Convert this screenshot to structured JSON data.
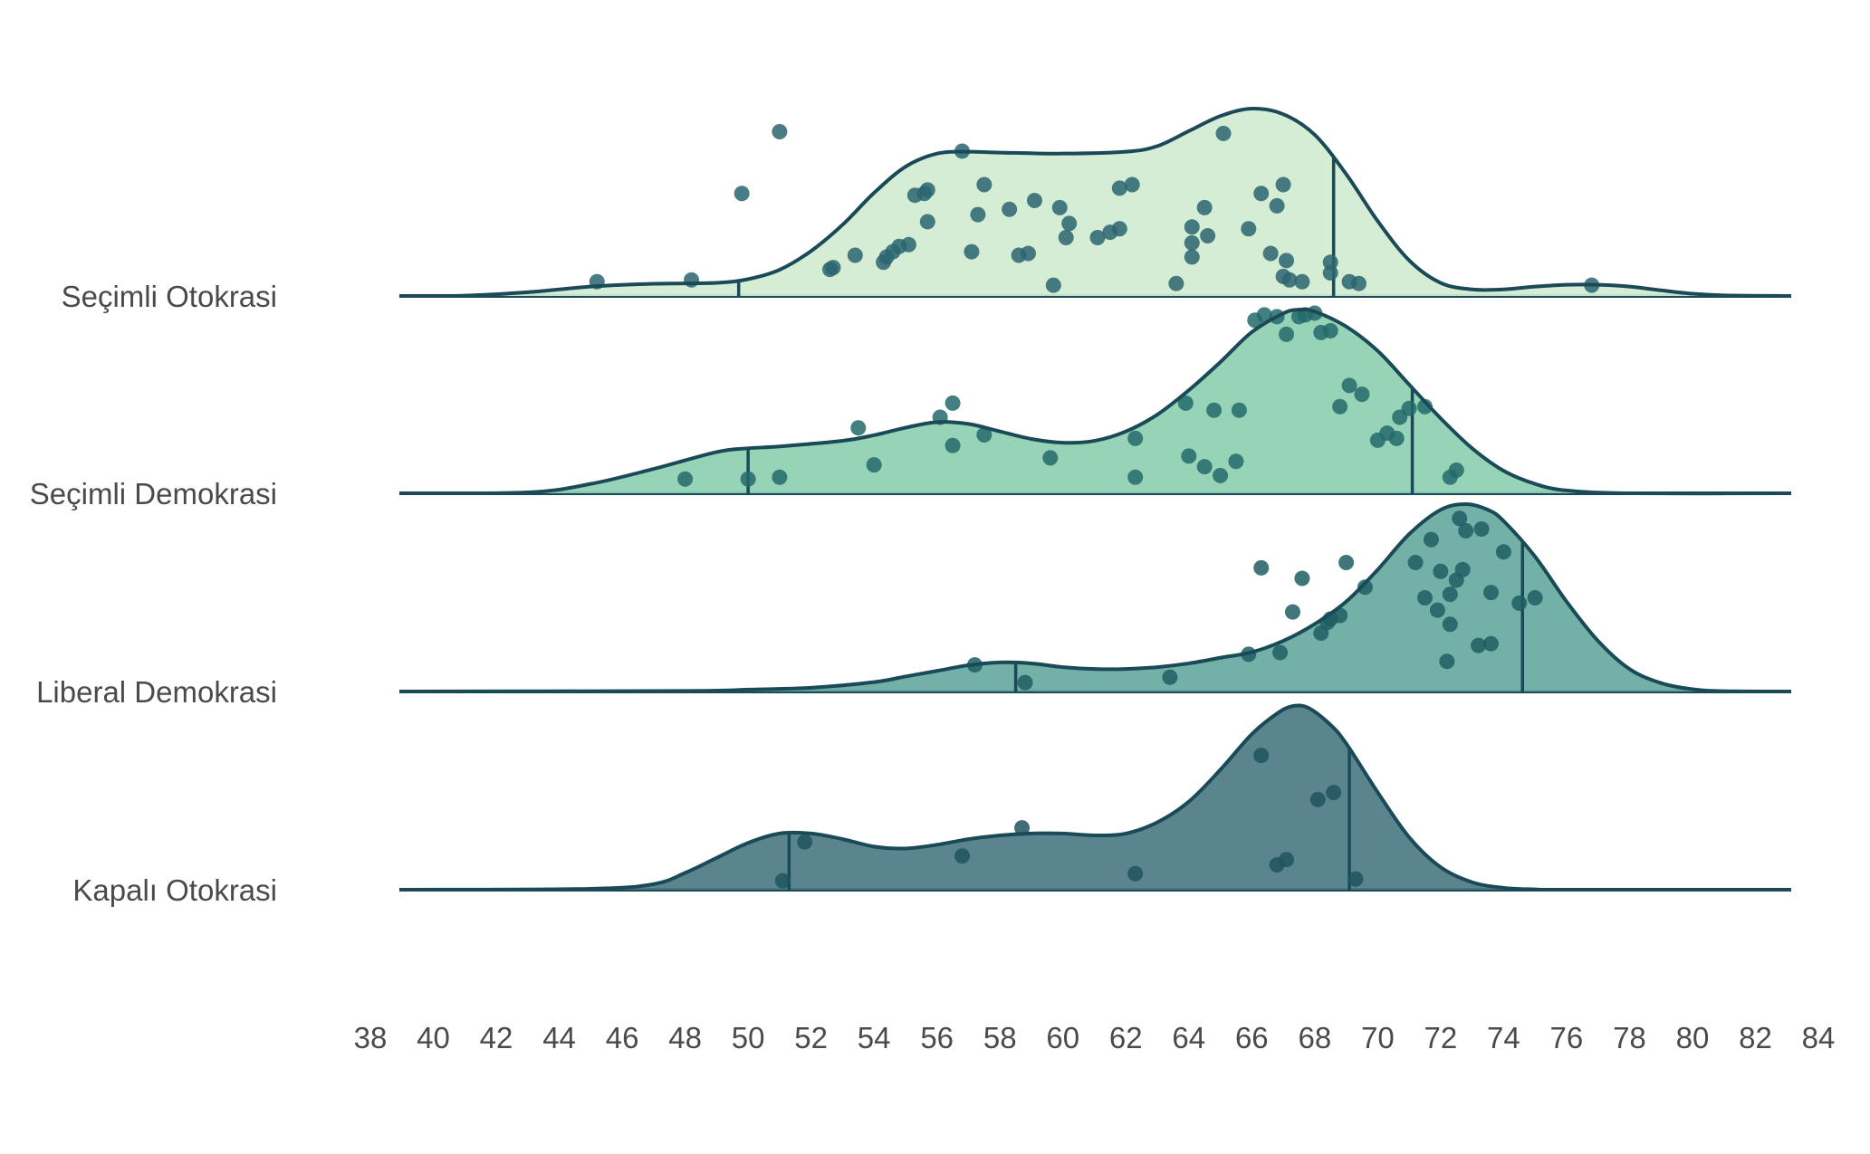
{
  "chart_data": {
    "type": "ridgeline",
    "title": "",
    "xlabel": "",
    "ylabel": "",
    "xlim": [
      38,
      84
    ],
    "x_ticks": [
      38,
      40,
      42,
      44,
      46,
      48,
      50,
      52,
      54,
      56,
      58,
      60,
      62,
      64,
      66,
      68,
      70,
      72,
      74,
      76,
      78,
      80,
      82,
      84
    ],
    "grid": false,
    "legend": "none",
    "line_color": "#1a4a57",
    "series": [
      {
        "name": "Seçimli Otokrasi",
        "fill": "#d3ecd1",
        "points_color": "#2a6570",
        "density": [
          [
            39,
            0.0
          ],
          [
            41,
            0.002
          ],
          [
            43,
            0.02
          ],
          [
            45,
            0.05
          ],
          [
            47,
            0.065
          ],
          [
            49,
            0.07
          ],
          [
            50,
            0.09
          ],
          [
            51,
            0.14
          ],
          [
            52,
            0.24
          ],
          [
            53,
            0.38
          ],
          [
            54,
            0.55
          ],
          [
            55,
            0.69
          ],
          [
            56,
            0.76
          ],
          [
            57,
            0.77
          ],
          [
            58,
            0.765
          ],
          [
            60,
            0.76
          ],
          [
            62,
            0.77
          ],
          [
            63,
            0.8
          ],
          [
            64,
            0.88
          ],
          [
            65,
            0.96
          ],
          [
            66,
            1.0
          ],
          [
            67,
            0.97
          ],
          [
            68,
            0.86
          ],
          [
            69,
            0.65
          ],
          [
            70,
            0.4
          ],
          [
            71,
            0.19
          ],
          [
            72,
            0.07
          ],
          [
            73,
            0.035
          ],
          [
            74,
            0.035
          ],
          [
            75,
            0.05
          ],
          [
            76,
            0.06
          ],
          [
            77,
            0.06
          ],
          [
            78,
            0.05
          ],
          [
            79,
            0.03
          ],
          [
            80,
            0.012
          ],
          [
            81,
            0.003
          ],
          [
            83,
            0.0
          ]
        ],
        "quantile_lines": [
          49.7,
          68.6
        ],
        "points": [
          [
            45.2,
            0.05
          ],
          [
            48.2,
            0.06
          ],
          [
            49.8,
            0.55
          ],
          [
            51.0,
            0.9
          ],
          [
            52.6,
            0.12
          ],
          [
            52.7,
            0.13
          ],
          [
            53.4,
            0.2
          ],
          [
            54.3,
            0.16
          ],
          [
            54.4,
            0.19
          ],
          [
            54.6,
            0.22
          ],
          [
            54.8,
            0.25
          ],
          [
            55.1,
            0.26
          ],
          [
            55.3,
            0.54
          ],
          [
            55.6,
            0.55
          ],
          [
            55.7,
            0.57
          ],
          [
            55.7,
            0.39
          ],
          [
            56.8,
            0.79
          ],
          [
            57.1,
            0.22
          ],
          [
            57.3,
            0.43
          ],
          [
            57.5,
            0.6
          ],
          [
            58.3,
            0.46
          ],
          [
            58.6,
            0.2
          ],
          [
            58.9,
            0.21
          ],
          [
            59.1,
            0.51
          ],
          [
            59.7,
            0.03
          ],
          [
            59.9,
            0.47
          ],
          [
            60.1,
            0.3
          ],
          [
            60.2,
            0.38
          ],
          [
            61.1,
            0.3
          ],
          [
            61.5,
            0.33
          ],
          [
            61.8,
            0.35
          ],
          [
            61.8,
            0.58
          ],
          [
            62.2,
            0.6
          ],
          [
            63.6,
            0.04
          ],
          [
            64.1,
            0.36
          ],
          [
            64.1,
            0.27
          ],
          [
            64.1,
            0.19
          ],
          [
            64.5,
            0.47
          ],
          [
            64.6,
            0.31
          ],
          [
            65.1,
            0.89
          ],
          [
            65.9,
            0.35
          ],
          [
            66.3,
            0.55
          ],
          [
            66.6,
            0.21
          ],
          [
            66.8,
            0.48
          ],
          [
            67.0,
            0.08
          ],
          [
            67.0,
            0.6
          ],
          [
            67.1,
            0.17
          ],
          [
            67.2,
            0.06
          ],
          [
            67.6,
            0.05
          ],
          [
            68.5,
            0.16
          ],
          [
            68.5,
            0.1
          ],
          [
            69.4,
            0.04
          ],
          [
            69.1,
            0.05
          ],
          [
            76.8,
            0.03
          ]
        ]
      },
      {
        "name": "Seçimli Demokrasi",
        "fill": "#8ecfb0",
        "points_color": "#236a6b",
        "density": [
          [
            39,
            0.0
          ],
          [
            43,
            0.005
          ],
          [
            45,
            0.05
          ],
          [
            47,
            0.13
          ],
          [
            49,
            0.22
          ],
          [
            50,
            0.24
          ],
          [
            51,
            0.25
          ],
          [
            53,
            0.28
          ],
          [
            54,
            0.31
          ],
          [
            55,
            0.35
          ],
          [
            56,
            0.38
          ],
          [
            57,
            0.37
          ],
          [
            58,
            0.33
          ],
          [
            59,
            0.29
          ],
          [
            60,
            0.27
          ],
          [
            61,
            0.28
          ],
          [
            62,
            0.33
          ],
          [
            63,
            0.42
          ],
          [
            64,
            0.55
          ],
          [
            65,
            0.7
          ],
          [
            66,
            0.86
          ],
          [
            67,
            0.96
          ],
          [
            67.5,
            0.98
          ],
          [
            68,
            0.97
          ],
          [
            69,
            0.89
          ],
          [
            70,
            0.76
          ],
          [
            71,
            0.58
          ],
          [
            72,
            0.4
          ],
          [
            73,
            0.24
          ],
          [
            74,
            0.12
          ],
          [
            75,
            0.05
          ],
          [
            76,
            0.015
          ],
          [
            78,
            0.0
          ],
          [
            83,
            0.0
          ]
        ],
        "quantile_lines": [
          50.0,
          71.1
        ],
        "points": [
          [
            48.0,
            0.05
          ],
          [
            50.0,
            0.05
          ],
          [
            51.0,
            0.06
          ],
          [
            53.5,
            0.34
          ],
          [
            54.0,
            0.13
          ],
          [
            56.1,
            0.4
          ],
          [
            56.5,
            0.24
          ],
          [
            56.5,
            0.48
          ],
          [
            57.5,
            0.3
          ],
          [
            59.6,
            0.17
          ],
          [
            62.3,
            0.28
          ],
          [
            62.3,
            0.06
          ],
          [
            63.9,
            0.48
          ],
          [
            64.0,
            0.18
          ],
          [
            64.5,
            0.12
          ],
          [
            64.8,
            0.44
          ],
          [
            65.0,
            0.07
          ],
          [
            65.5,
            0.15
          ],
          [
            65.6,
            0.44
          ],
          [
            66.1,
            0.95
          ],
          [
            66.4,
            0.98
          ],
          [
            66.8,
            0.97
          ],
          [
            67.1,
            0.87
          ],
          [
            67.5,
            0.97
          ],
          [
            67.7,
            0.98
          ],
          [
            68.0,
            0.99
          ],
          [
            68.2,
            0.88
          ],
          [
            68.5,
            0.89
          ],
          [
            68.8,
            0.46
          ],
          [
            69.1,
            0.58
          ],
          [
            69.5,
            0.53
          ],
          [
            70.0,
            0.27
          ],
          [
            70.3,
            0.31
          ],
          [
            70.6,
            0.28
          ],
          [
            70.7,
            0.4
          ],
          [
            71.0,
            0.45
          ],
          [
            71.5,
            0.46
          ],
          [
            72.3,
            0.06
          ],
          [
            72.5,
            0.1
          ]
        ]
      },
      {
        "name": "Liberal Demokrasi",
        "fill": "#66a9a1",
        "points_color": "#1e5e63",
        "density": [
          [
            39,
            0.0
          ],
          [
            48,
            0.003
          ],
          [
            50,
            0.01
          ],
          [
            52,
            0.02
          ],
          [
            54,
            0.05
          ],
          [
            55,
            0.08
          ],
          [
            56,
            0.11
          ],
          [
            57,
            0.14
          ],
          [
            58,
            0.155
          ],
          [
            59,
            0.15
          ],
          [
            60,
            0.13
          ],
          [
            61,
            0.12
          ],
          [
            62,
            0.12
          ],
          [
            63,
            0.13
          ],
          [
            64,
            0.15
          ],
          [
            65,
            0.18
          ],
          [
            66,
            0.21
          ],
          [
            67,
            0.27
          ],
          [
            68,
            0.36
          ],
          [
            69,
            0.48
          ],
          [
            70,
            0.65
          ],
          [
            71,
            0.84
          ],
          [
            72,
            0.97
          ],
          [
            72.8,
            1.0
          ],
          [
            73.5,
            0.97
          ],
          [
            74,
            0.91
          ],
          [
            75,
            0.72
          ],
          [
            76,
            0.48
          ],
          [
            77,
            0.27
          ],
          [
            78,
            0.12
          ],
          [
            79,
            0.045
          ],
          [
            80,
            0.012
          ],
          [
            81,
            0.002
          ],
          [
            83,
            0.0
          ]
        ],
        "quantile_lines": [
          58.5,
          74.6
        ],
        "points": [
          [
            57.2,
            0.12
          ],
          [
            58.8,
            0.02
          ],
          [
            63.4,
            0.05
          ],
          [
            65.9,
            0.18
          ],
          [
            66.3,
            0.67
          ],
          [
            66.9,
            0.19
          ],
          [
            67.3,
            0.42
          ],
          [
            67.6,
            0.61
          ],
          [
            68.2,
            0.3
          ],
          [
            68.4,
            0.36
          ],
          [
            68.5,
            0.38
          ],
          [
            68.8,
            0.4
          ],
          [
            69.0,
            0.7
          ],
          [
            69.6,
            0.56
          ],
          [
            71.2,
            0.7
          ],
          [
            71.5,
            0.5
          ],
          [
            71.7,
            0.83
          ],
          [
            71.9,
            0.43
          ],
          [
            72.0,
            0.65
          ],
          [
            72.2,
            0.14
          ],
          [
            72.3,
            0.35
          ],
          [
            72.3,
            0.52
          ],
          [
            72.5,
            0.6
          ],
          [
            72.6,
            0.95
          ],
          [
            72.7,
            0.66
          ],
          [
            72.8,
            0.88
          ],
          [
            73.3,
            0.89
          ],
          [
            73.2,
            0.23
          ],
          [
            73.6,
            0.24
          ],
          [
            73.6,
            0.53
          ],
          [
            74.0,
            0.76
          ],
          [
            74.5,
            0.47
          ],
          [
            75.0,
            0.5
          ]
        ]
      },
      {
        "name": "Kapalı Otokrasi",
        "fill": "#4c7b84",
        "points_color": "#21545f",
        "density": [
          [
            39,
            0.0
          ],
          [
            45,
            0.005
          ],
          [
            47,
            0.03
          ],
          [
            48,
            0.09
          ],
          [
            49,
            0.17
          ],
          [
            50,
            0.25
          ],
          [
            51,
            0.3
          ],
          [
            52,
            0.3
          ],
          [
            53,
            0.27
          ],
          [
            54,
            0.23
          ],
          [
            55,
            0.22
          ],
          [
            56,
            0.24
          ],
          [
            57,
            0.27
          ],
          [
            58,
            0.29
          ],
          [
            59,
            0.3
          ],
          [
            60,
            0.3
          ],
          [
            61,
            0.29
          ],
          [
            62,
            0.3
          ],
          [
            63,
            0.36
          ],
          [
            64,
            0.47
          ],
          [
            65,
            0.64
          ],
          [
            66,
            0.83
          ],
          [
            66.8,
            0.94
          ],
          [
            67.3,
            0.98
          ],
          [
            67.8,
            0.97
          ],
          [
            68.5,
            0.88
          ],
          [
            69,
            0.78
          ],
          [
            70,
            0.52
          ],
          [
            71,
            0.28
          ],
          [
            72,
            0.12
          ],
          [
            73,
            0.04
          ],
          [
            74,
            0.01
          ],
          [
            75,
            0.002
          ],
          [
            76,
            0.0
          ],
          [
            83,
            0.0
          ]
        ],
        "quantile_lines": [
          51.3,
          69.1
        ],
        "points": [
          [
            51.1,
            0.02
          ],
          [
            51.8,
            0.24
          ],
          [
            56.8,
            0.16
          ],
          [
            58.7,
            0.32
          ],
          [
            62.3,
            0.06
          ],
          [
            66.3,
            0.73
          ],
          [
            66.8,
            0.11
          ],
          [
            67.1,
            0.14
          ],
          [
            68.1,
            0.48
          ],
          [
            68.6,
            0.52
          ],
          [
            69.3,
            0.03
          ]
        ]
      }
    ]
  }
}
